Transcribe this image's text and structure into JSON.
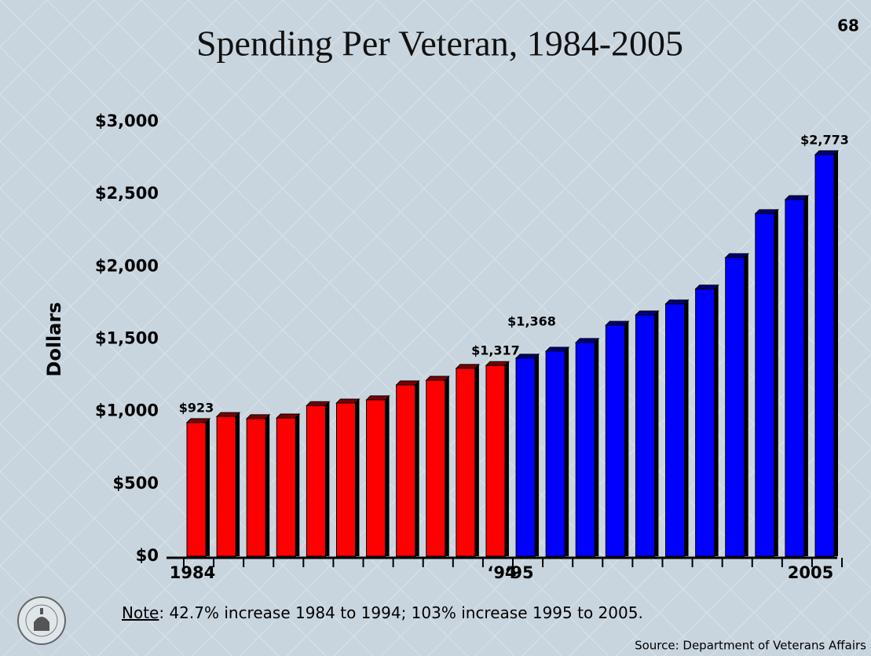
{
  "chart_data": {
    "type": "bar",
    "title": "Spending Per Veteran, 1984-2005",
    "page_number": "68",
    "y_label": "Dollars",
    "note_label": "Note",
    "note": ": 42.7% increase 1984 to 1994; 103% increase 1995 to 2005.",
    "source": "Source: Department of Veterans Affairs",
    "categories": [
      "1984",
      null,
      null,
      null,
      null,
      null,
      null,
      null,
      null,
      null,
      "‘94",
      "‘95",
      null,
      null,
      null,
      null,
      null,
      null,
      null,
      null,
      null,
      "2005"
    ],
    "values": [
      923,
      965,
      950,
      955,
      1040,
      1058,
      1080,
      1183,
      1215,
      1297,
      1317,
      1368,
      1416,
      1476,
      1595,
      1666,
      1742,
      1845,
      2062,
      2366,
      2463,
      2773
    ],
    "value_labels": [
      "$923",
      null,
      null,
      null,
      null,
      null,
      null,
      null,
      null,
      null,
      "$1,317",
      "$1,368",
      null,
      null,
      null,
      null,
      null,
      null,
      null,
      null,
      null,
      "$2,773"
    ],
    "colors": [
      "#ff0000",
      "#ff0000",
      "#ff0000",
      "#ff0000",
      "#ff0000",
      "#ff0000",
      "#ff0000",
      "#ff0000",
      "#ff0000",
      "#ff0000",
      "#ff0000",
      "#0000ff",
      "#0000ff",
      "#0000ff",
      "#0000ff",
      "#0000ff",
      "#0000ff",
      "#0000ff",
      "#0000ff",
      "#0000ff",
      "#0000ff",
      "#0000ff"
    ],
    "ylim": [
      0,
      3000
    ],
    "yticks": [
      {
        "value": 0,
        "label": "$0"
      },
      {
        "value": 500,
        "label": "$500"
      },
      {
        "value": 1000,
        "label": "$1,000"
      },
      {
        "value": 1500,
        "label": "$1,500"
      },
      {
        "value": 2000,
        "label": "$2,000"
      },
      {
        "value": 2500,
        "label": "$2,500"
      },
      {
        "value": 3000,
        "label": "$3,000"
      }
    ],
    "grid": false
  }
}
